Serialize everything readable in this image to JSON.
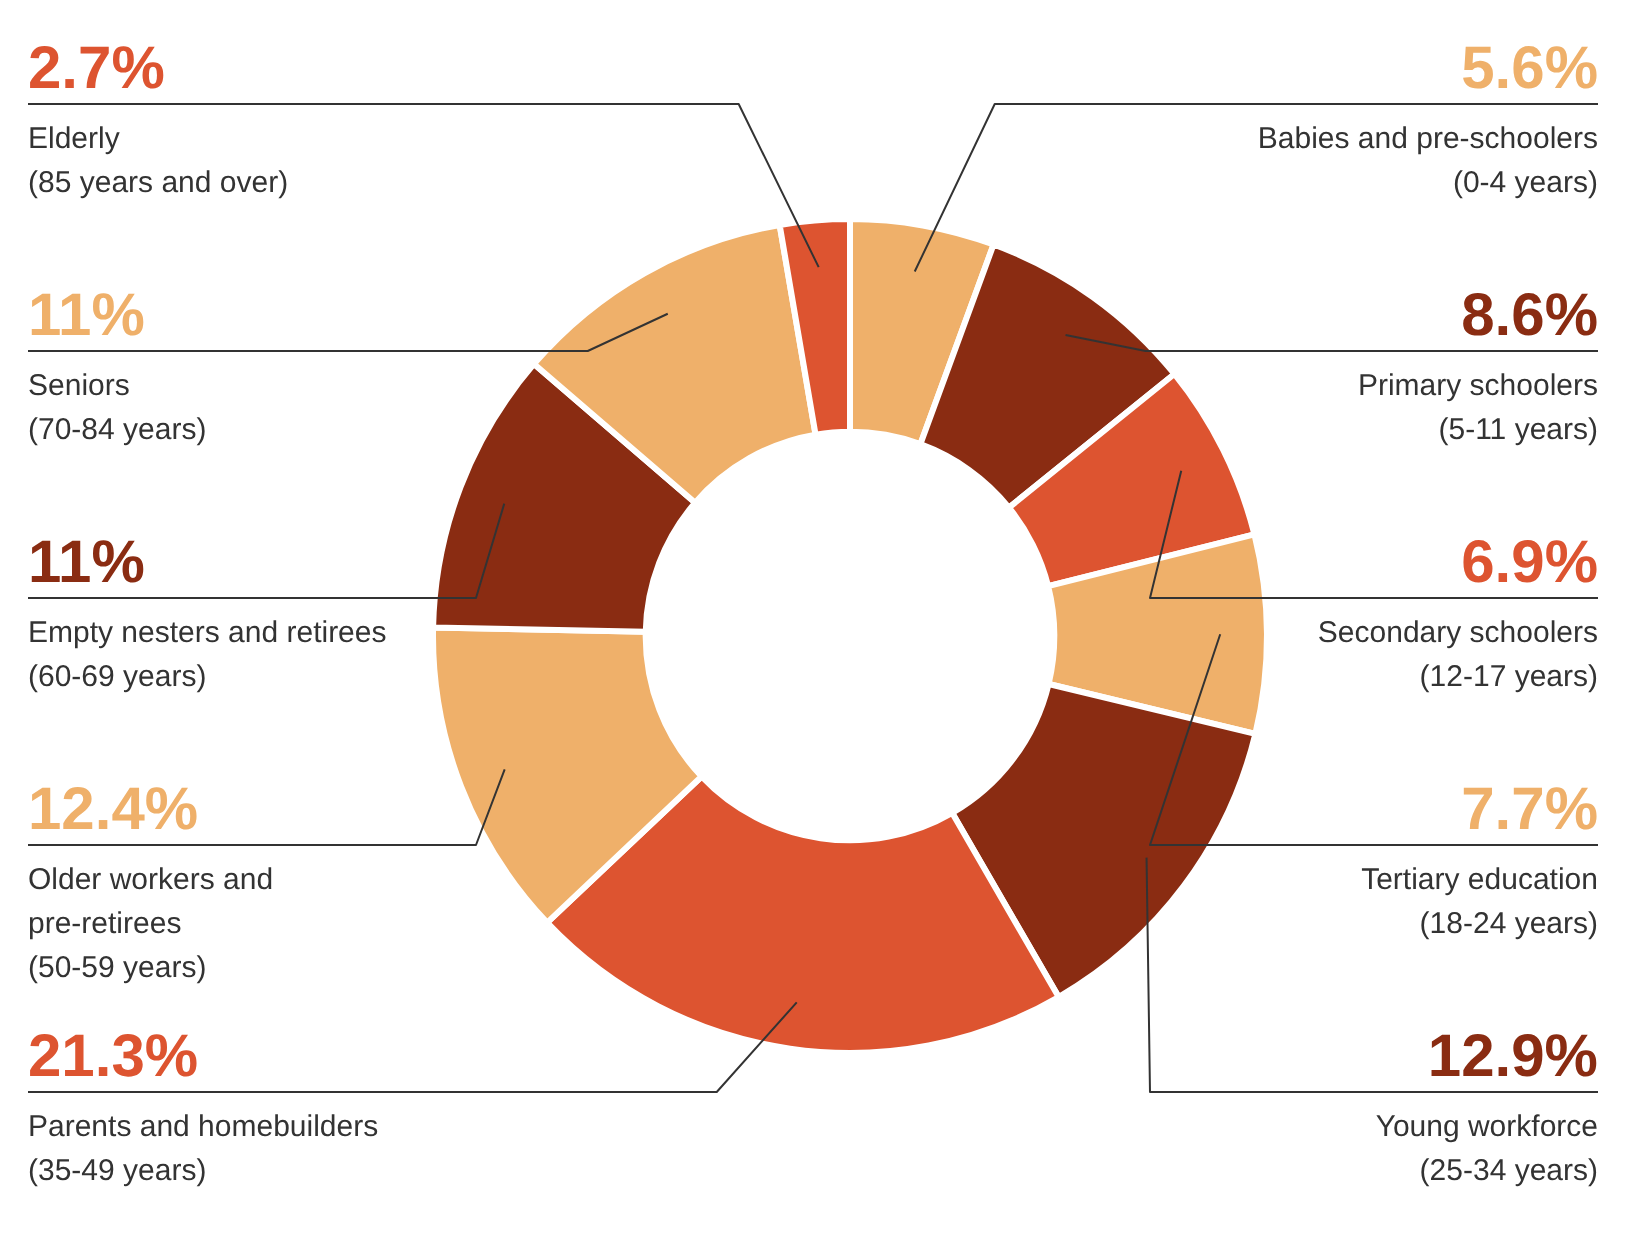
{
  "chart_data": {
    "type": "donut",
    "categories": [
      "Babies and pre-schoolers (0-4 years)",
      "Primary schoolers (5-11 years)",
      "Secondary schoolers (12-17 years)",
      "Tertiary education (18-24 years)",
      "Young workforce (25-34 years)",
      "Parents and homebuilders (35-49 years)",
      "Older workers and pre-retirees (50-59 years)",
      "Empty nesters and retirees (60-69 years)",
      "Seniors (70-84 years)",
      "Elderly (85 years and over)"
    ],
    "values": [
      5.6,
      8.6,
      6.9,
      7.7,
      12.9,
      21.3,
      12.4,
      11,
      11,
      2.7
    ],
    "colors": [
      "#efb06a",
      "#8a2c12",
      "#dd5430",
      "#efb06a",
      "#8a2c12",
      "#dd5430",
      "#efb06a",
      "#8a2c12",
      "#efb06a",
      "#dd5430"
    ],
    "value_labels": [
      "5.6%",
      "8.6%",
      "6.9%",
      "7.7%",
      "12.9%",
      "21.3%",
      "12.4%",
      "11%",
      "11%",
      "2.7%"
    ]
  }
}
